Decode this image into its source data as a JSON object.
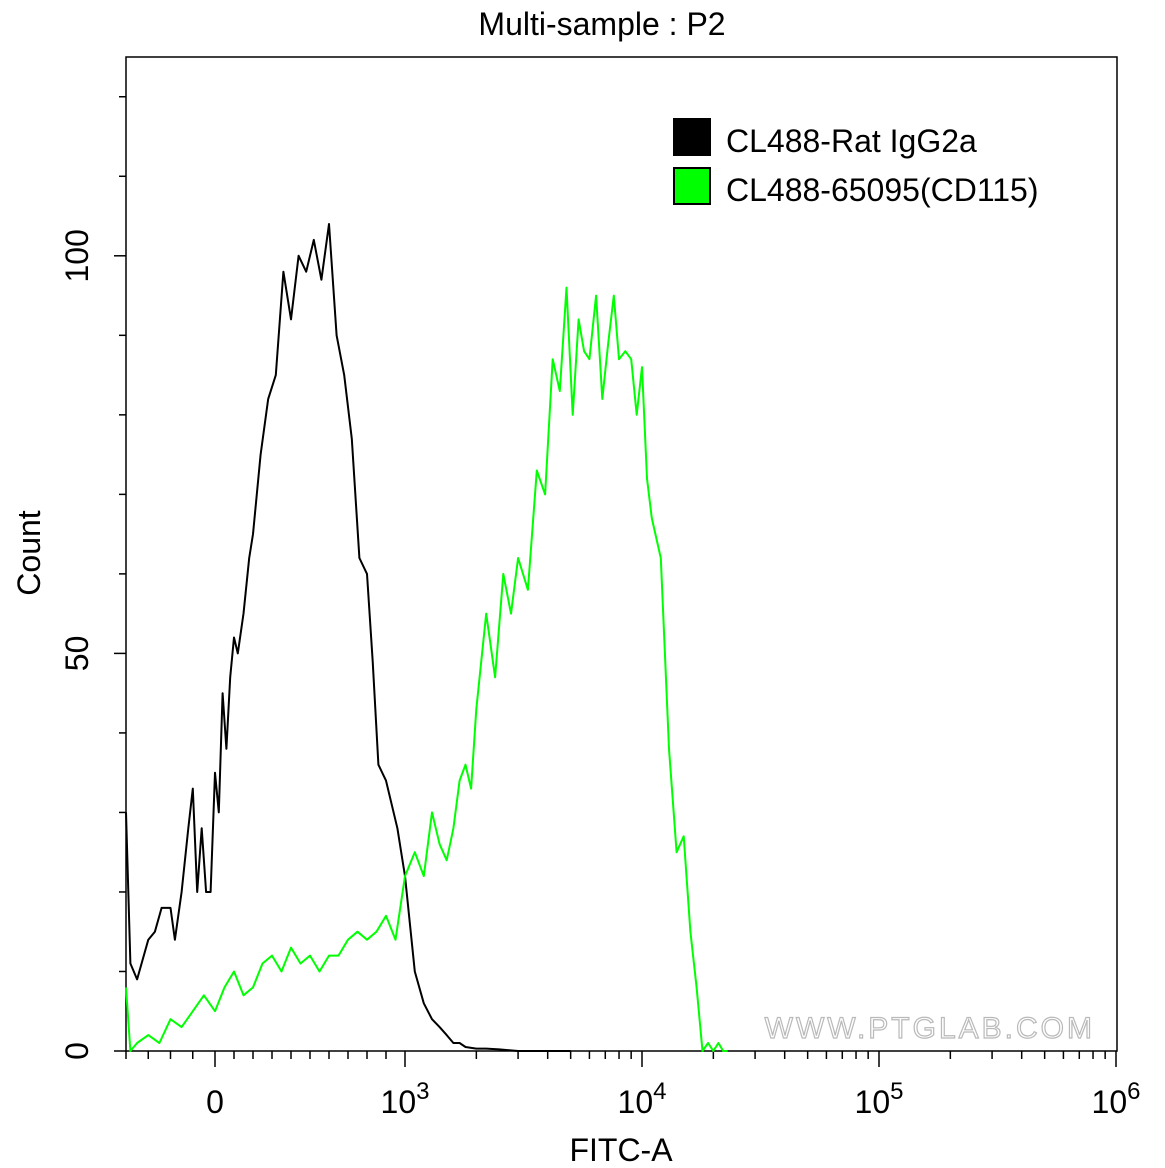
{
  "chart_data": {
    "type": "line",
    "title": "Multi-sample : P2",
    "xlabel": "FITC-A",
    "ylabel": "Count",
    "x_scale": "biexponential",
    "xlim": [
      -400,
      1000000
    ],
    "ylim": [
      0,
      125
    ],
    "x_ticks": [
      {
        "value": 0,
        "base": "0",
        "exp": ""
      },
      {
        "value": 1000,
        "base": "10",
        "exp": "3"
      },
      {
        "value": 10000,
        "base": "10",
        "exp": "4"
      },
      {
        "value": 100000,
        "base": "10",
        "exp": "5"
      },
      {
        "value": 1000000,
        "base": "10",
        "exp": "6"
      }
    ],
    "y_ticks": [
      {
        "value": 0,
        "label": "0"
      },
      {
        "value": 50,
        "label": "50"
      },
      {
        "value": 100,
        "label": "100"
      }
    ],
    "legend_position": "top-right",
    "grid": false,
    "watermark": "WWW.PTGLAB.COM",
    "series": [
      {
        "name": "CL488-Rat IgG2a",
        "color": "#000000",
        "x": [
          -400,
          -380,
          -350,
          -300,
          -270,
          -240,
          -200,
          -180,
          -150,
          -120,
          -100,
          -80,
          -60,
          -40,
          -20,
          0,
          20,
          40,
          60,
          80,
          100,
          120,
          150,
          180,
          200,
          240,
          280,
          320,
          360,
          400,
          440,
          480,
          520,
          560,
          600,
          640,
          680,
          720,
          760,
          800,
          830,
          860,
          900,
          960,
          1000,
          1100,
          1200,
          1300,
          1400,
          1500,
          1600,
          1700,
          1800,
          2000,
          2200,
          2500,
          3000,
          4000,
          5000
        ],
        "y": [
          30,
          11,
          9,
          14,
          15,
          18,
          18,
          14,
          20,
          28,
          33,
          20,
          28,
          20,
          20,
          35,
          30,
          45,
          38,
          47,
          52,
          50,
          55,
          62,
          65,
          75,
          82,
          85,
          98,
          92,
          100,
          98,
          102,
          97,
          104,
          90,
          85,
          77,
          62,
          60,
          49,
          36,
          34,
          28,
          22,
          10,
          6,
          4,
          3,
          2,
          1,
          1,
          0.5,
          0.3,
          0.3,
          0.2,
          0,
          0,
          0
        ]
      },
      {
        "name": "CL488-65095(CD115)",
        "color": "#00ff00",
        "x": [
          -400,
          -380,
          -350,
          -300,
          -250,
          -200,
          -150,
          -100,
          -50,
          0,
          50,
          100,
          150,
          200,
          250,
          300,
          350,
          400,
          450,
          500,
          550,
          600,
          650,
          700,
          750,
          800,
          850,
          900,
          950,
          1000,
          1100,
          1200,
          1300,
          1400,
          1500,
          1600,
          1700,
          1800,
          1900,
          2000,
          2200,
          2400,
          2600,
          2800,
          3000,
          3300,
          3600,
          3900,
          4200,
          4500,
          4800,
          5100,
          5400,
          5700,
          6000,
          6400,
          6800,
          7200,
          7600,
          8000,
          8500,
          9000,
          9500,
          10000,
          10500,
          11000,
          12000,
          13000,
          14000,
          15000,
          16000,
          17000,
          18000,
          19000,
          20000,
          21000,
          22000,
          23000
        ],
        "y": [
          8,
          0,
          1,
          2,
          1,
          4,
          3,
          5,
          7,
          5,
          8,
          10,
          7,
          8,
          11,
          12,
          10,
          13,
          11,
          12,
          10,
          12,
          12,
          14,
          15,
          14,
          15,
          17,
          14,
          22,
          25,
          22,
          30,
          26,
          24,
          28,
          34,
          36,
          33,
          43,
          55,
          47,
          60,
          55,
          62,
          58,
          73,
          70,
          87,
          83,
          96,
          80,
          92,
          88,
          87,
          95,
          82,
          89,
          95,
          87,
          88,
          87,
          80,
          86,
          72,
          67,
          62,
          38,
          25,
          27,
          15,
          8,
          0,
          1,
          0,
          1,
          0,
          0
        ]
      }
    ]
  }
}
